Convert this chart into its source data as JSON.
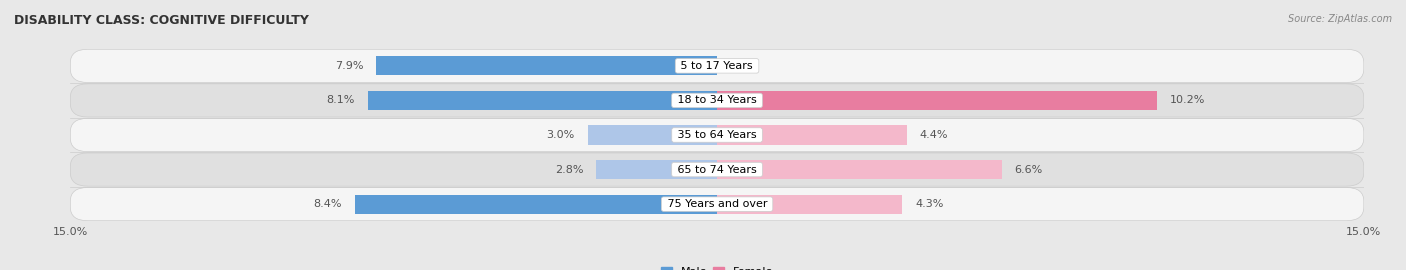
{
  "title": "DISABILITY CLASS: COGNITIVE DIFFICULTY",
  "source": "Source: ZipAtlas.com",
  "categories": [
    "5 to 17 Years",
    "18 to 34 Years",
    "35 to 64 Years",
    "65 to 74 Years",
    "75 Years and over"
  ],
  "male_values": [
    7.9,
    8.1,
    3.0,
    2.8,
    8.4
  ],
  "female_values": [
    0.0,
    10.2,
    4.4,
    6.6,
    4.3
  ],
  "x_max": 15.0,
  "male_color_strong": "#5b9bd5",
  "male_color_light": "#aec6e8",
  "female_color_strong": "#e87da0",
  "female_color_light": "#f4b8cb",
  "bar_height": 0.55,
  "background_color": "#e8e8e8",
  "row_bg_even": "#f5f5f5",
  "row_bg_odd": "#e0e0e0",
  "title_fontsize": 9,
  "label_fontsize": 8,
  "axis_fontsize": 8,
  "legend_fontsize": 8
}
